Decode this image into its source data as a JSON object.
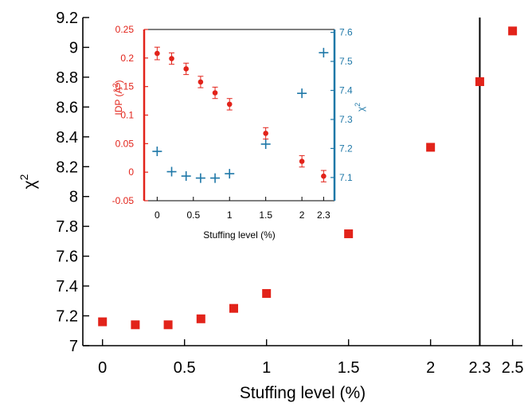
{
  "chart_data": [
    {
      "type": "scatter",
      "title": "",
      "xlabel": "Stuffing level (%)",
      "ylabel": "χ",
      "ylabel_superscript": "2",
      "xlim": [
        -0.12,
        2.56
      ],
      "ylim": [
        7.0,
        9.2
      ],
      "xticks": [
        0,
        0.5,
        1,
        1.5,
        2,
        2.3,
        2.5
      ],
      "xtick_labels": [
        "0",
        "0.5",
        "1",
        "1.5",
        "2",
        "2.3",
        "2.5"
      ],
      "yticks": [
        7.0,
        7.2,
        7.4,
        7.6,
        7.8,
        8.0,
        8.2,
        8.4,
        8.6,
        8.8,
        9.0,
        9.2
      ],
      "ytick_labels": [
        "7",
        "7.2",
        "7.4",
        "7.6",
        "7.8",
        "8",
        "8.2",
        "8.4",
        "8.6",
        "8.8",
        "9",
        "9.2"
      ],
      "vline_x": 2.3,
      "marker": "square",
      "color": "#e2231a",
      "series": [
        {
          "x": [
            0,
            0.2,
            0.4,
            0.6,
            0.8,
            1.0,
            1.5,
            2.0,
            2.3,
            2.5
          ],
          "y": [
            7.16,
            7.14,
            7.14,
            7.18,
            7.25,
            7.35,
            7.75,
            8.33,
            8.77,
            9.11
          ]
        }
      ]
    },
    {
      "type": "scatter",
      "title": "",
      "xlabel": "Stuffing level (%)",
      "xlim": [
        -0.18,
        2.45
      ],
      "xticks": [
        0,
        0.5,
        1,
        1.5,
        2,
        2.3
      ],
      "xtick_labels": [
        "0",
        "0.5",
        "1",
        "1.5",
        "2",
        "2.3"
      ],
      "left_axis": {
        "label": "IDP (Å",
        "label_superscript": "2",
        "label_close": ")",
        "ylim": [
          -0.05,
          0.25
        ],
        "yticks": [
          -0.05,
          0,
          0.05,
          0.1,
          0.15,
          0.2,
          0.25
        ],
        "ytick_labels": [
          "-0.05",
          "0",
          "0.05",
          "0.1",
          "0.15",
          "0.2",
          "0.25"
        ],
        "color": "#e2231a"
      },
      "right_axis": {
        "label": "χ",
        "label_superscript": "2",
        "ylim": [
          7.02,
          7.61
        ],
        "yticks": [
          7.1,
          7.2,
          7.3,
          7.4,
          7.5,
          7.6
        ],
        "ytick_labels": [
          "7.1",
          "7.2",
          "7.3",
          "7.4",
          "7.5",
          "7.6"
        ],
        "color": "#1f78a8"
      },
      "series": [
        {
          "axis": "left",
          "marker": "dot-errorbar",
          "color": "#e2231a",
          "x": [
            0,
            0.2,
            0.4,
            0.6,
            0.8,
            1.0,
            1.5,
            2.0,
            2.3
          ],
          "y": [
            0.208,
            0.199,
            0.181,
            0.158,
            0.139,
            0.119,
            0.068,
            0.019,
            -0.007
          ],
          "err": [
            0.011,
            0.01,
            0.01,
            0.01,
            0.01,
            0.01,
            0.01,
            0.01,
            0.01
          ]
        },
        {
          "axis": "right",
          "marker": "plus",
          "color": "#1f78a8",
          "x": [
            0,
            0.2,
            0.4,
            0.6,
            0.8,
            1.0,
            1.5,
            2.0,
            2.3
          ],
          "y": [
            7.19,
            7.12,
            7.105,
            7.098,
            7.098,
            7.113,
            7.215,
            7.39,
            7.53
          ]
        }
      ]
    }
  ]
}
